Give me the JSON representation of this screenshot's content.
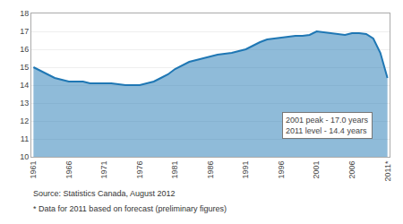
{
  "chart_data": {
    "type": "area",
    "x": [
      1961,
      1962,
      1963,
      1964,
      1965,
      1966,
      1967,
      1968,
      1969,
      1970,
      1971,
      1972,
      1973,
      1974,
      1975,
      1976,
      1977,
      1978,
      1979,
      1980,
      1981,
      1982,
      1983,
      1984,
      1985,
      1986,
      1987,
      1988,
      1989,
      1990,
      1991,
      1992,
      1993,
      1994,
      1995,
      1996,
      1997,
      1998,
      1999,
      2000,
      2001,
      2002,
      2003,
      2004,
      2005,
      2006,
      2007,
      2008,
      2009,
      2010,
      2011
    ],
    "values": [
      15.0,
      14.8,
      14.6,
      14.4,
      14.3,
      14.2,
      14.2,
      14.2,
      14.1,
      14.1,
      14.1,
      14.1,
      14.05,
      14.0,
      14.0,
      14.0,
      14.1,
      14.2,
      14.4,
      14.6,
      14.9,
      15.1,
      15.3,
      15.4,
      15.5,
      15.6,
      15.7,
      15.75,
      15.8,
      15.9,
      16.0,
      16.2,
      16.4,
      16.55,
      16.6,
      16.65,
      16.7,
      16.75,
      16.75,
      16.8,
      17.0,
      16.95,
      16.9,
      16.85,
      16.8,
      16.9,
      16.9,
      16.85,
      16.6,
      15.8,
      14.4
    ],
    "xlim": [
      1960.7,
      2011.3
    ],
    "xticks": [
      1961,
      1966,
      1971,
      1976,
      1981,
      1986,
      1991,
      1996,
      2001,
      2006,
      {
        "value": 2011,
        "label": "2011*"
      }
    ],
    "ylim": [
      10,
      18
    ],
    "yticks": [
      10,
      11,
      12,
      13,
      14,
      15,
      16,
      17,
      18
    ],
    "grid": true,
    "annotations": [
      "2001 peak - 17.0 years\n2011 level - 14.4 years",
      "Source: Statistics Canada, August 2012",
      "* Data for 2011 based on forecast (preliminary figures)"
    ]
  }
}
